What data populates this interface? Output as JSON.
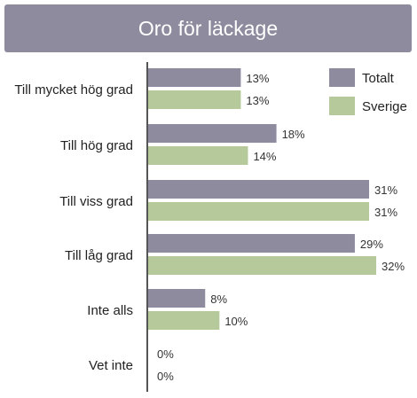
{
  "chart_data": {
    "type": "bar",
    "orientation": "horizontal",
    "title": "Oro för läckage",
    "categories": [
      "Till mycket hög grad",
      "Till hög grad",
      "Till viss grad",
      "Till låg grad",
      "Inte alls",
      "Vet inte"
    ],
    "series": [
      {
        "name": "Totalt",
        "values": [
          13,
          18,
          31,
          29,
          8,
          0
        ],
        "labels": [
          "13%",
          "18%",
          "31%",
          "29%",
          "8%",
          "0%"
        ],
        "color": "#8f8b9e"
      },
      {
        "name": "Sverige",
        "values": [
          13,
          14,
          31,
          32,
          10,
          0
        ],
        "labels": [
          "13%",
          "14%",
          "31%",
          "32%",
          "10%",
          "0%"
        ],
        "color": "#b6c99b"
      }
    ],
    "xlim": [
      0,
      35
    ],
    "legend": "top-right",
    "grid": false
  }
}
